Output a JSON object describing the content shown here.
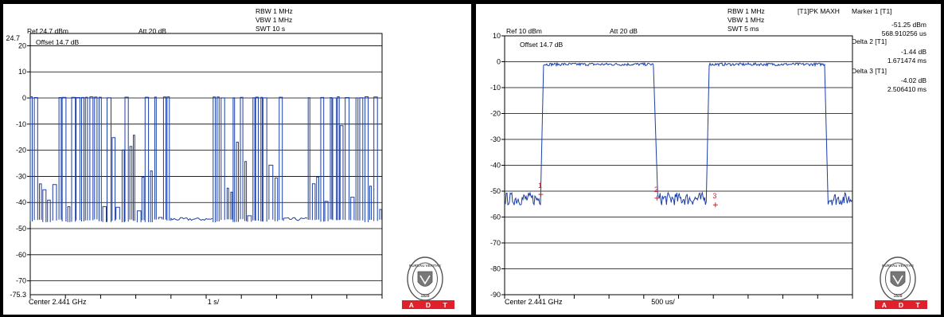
{
  "logo": {
    "seal_text": [
      "BUREAU",
      "VERITAS",
      "1828"
    ],
    "bar_letters": [
      "A",
      "D",
      "T"
    ],
    "bar_color": "#e0202a"
  },
  "trace_color": "#1a3fa8",
  "marker_color": "#d0202a",
  "chart_data": [
    {
      "type": "line",
      "header": {
        "rbw": "RBW 1 MHz",
        "vbw": "VBW 1 MHz",
        "swt": "SWT 10 s",
        "ref": "Ref 24.7 dBm",
        "att": "Att  20 dB",
        "offset": "Offset 14.7 dB",
        "center": "Center 2.441 GHz",
        "span": "1 s/"
      },
      "ylim": [
        -75.3,
        24.7
      ],
      "yticks": [
        20,
        10,
        0,
        -10,
        -20,
        -30,
        -40,
        -50,
        -60,
        -70
      ],
      "ytick_labels": [
        "20",
        "10",
        "0",
        "-10",
        "-20",
        "-30",
        "-40",
        "-50",
        "-60",
        "-70"
      ],
      "ymax_label": "24.7",
      "ymin_label": "-75.3",
      "xlim": [
        0,
        10
      ],
      "x_unit": "s",
      "series": [
        {
          "values_desc": "pulsed hopping signal",
          "segments": [
            {
              "x": [
                0.0,
                4.0
              ],
              "mode": "pulsed",
              "high": 0,
              "low": -47
            },
            {
              "x": [
                4.0,
                5.2
              ],
              "mode": "floor",
              "high": -46,
              "low": -47
            },
            {
              "x": [
                5.2,
                7.2
              ],
              "mode": "pulsed",
              "high": 0,
              "low": -47
            },
            {
              "x": [
                7.2,
                7.9
              ],
              "mode": "floor",
              "high": -46,
              "low": -47
            },
            {
              "x": [
                7.9,
                10.0
              ],
              "mode": "pulsed",
              "high": 0,
              "low": -47
            }
          ]
        }
      ]
    },
    {
      "type": "line",
      "header": {
        "rbw": "RBW 1 MHz",
        "vbw": "VBW 1 MHz",
        "swt": "SWT 5 ms",
        "trace": "[T1]PK MAXH",
        "ref": "Ref 10 dBm",
        "att": "Att  20 dB",
        "offset": "Offset 14.7 dB",
        "center": "Center 2.441 GHz",
        "span": "500 us/"
      },
      "markers_info": [
        {
          "label": "Marker 1 [T1]",
          "value": "-51.25 dBm",
          "time": "568.910256 us"
        },
        {
          "label": "Delta 2 [T1]",
          "value": "-1.44 dB",
          "time": "1.671474 ms"
        },
        {
          "label": "Delta 3 [T1]",
          "value": "-4.02 dB",
          "time": "2.506410 ms"
        }
      ],
      "ylim": [
        -90,
        10
      ],
      "yticks": [
        10,
        0,
        -10,
        -20,
        -30,
        -40,
        -50,
        -60,
        -70,
        -80,
        -90
      ],
      "ytick_labels": [
        "10",
        "0",
        "-10",
        "-20",
        "-30",
        "-40",
        "-50",
        "-60",
        "-70",
        "-80",
        "-90"
      ],
      "xlim": [
        0,
        5
      ],
      "x_unit": "ms",
      "series": [
        {
          "segments": [
            {
              "x": [
                0.0,
                0.52
              ],
              "mode": "noise",
              "level": -53
            },
            {
              "x": [
                0.56,
                2.15
              ],
              "mode": "flat",
              "level": -1
            },
            {
              "x": [
                2.2,
                2.9
              ],
              "mode": "noise",
              "level": -53
            },
            {
              "x": [
                2.94,
                4.6
              ],
              "mode": "flat",
              "level": -1
            },
            {
              "x": [
                4.65,
                5.0
              ],
              "mode": "noise",
              "level": -53
            }
          ],
          "edges": [
            0.54,
            2.17,
            2.92,
            4.62
          ]
        }
      ],
      "markers": [
        {
          "id": "1",
          "x": 0.52,
          "y": -51.25
        },
        {
          "id": "2",
          "x": 2.19,
          "y": -52.7
        },
        {
          "id": "3",
          "x": 3.03,
          "y": -55.3
        }
      ]
    }
  ]
}
